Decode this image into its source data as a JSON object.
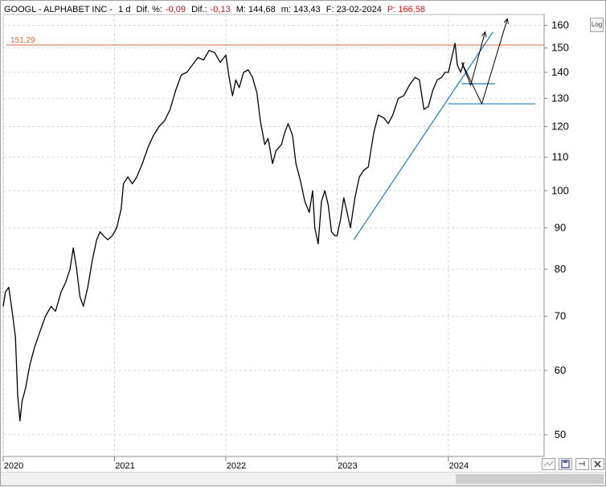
{
  "header": {
    "symbol": "GOOGL - ALPHABET INC -",
    "interval": "1 d",
    "pct_change_label": "Dif. %:",
    "pct_change_value": "-0,09",
    "change_label": "Dif.:",
    "change_value": "-0,13",
    "max_label": "M: 144,68",
    "min_label": "m: 143,43",
    "date_label": "F: 23-02-2024",
    "price_label": "P: 166,58"
  },
  "log_button": "Log",
  "colors": {
    "negative": "#d01010",
    "price_line": "#000000",
    "horizontal_level": "#d86a3a",
    "trendline": "#1c7ec0",
    "grid": "#d6d6d6"
  },
  "chart_data": {
    "type": "line",
    "series": [
      {
        "values": [
          [
            2020.0,
            72
          ],
          [
            2020.02,
            75
          ],
          [
            2020.05,
            76
          ],
          [
            2020.08,
            71
          ],
          [
            2020.11,
            66
          ],
          [
            2020.13,
            56
          ],
          [
            2020.15,
            52
          ],
          [
            2020.17,
            55
          ],
          [
            2020.2,
            57
          ],
          [
            2020.24,
            61
          ],
          [
            2020.28,
            64
          ],
          [
            2020.33,
            67
          ],
          [
            2020.38,
            70
          ],
          [
            2020.43,
            72
          ],
          [
            2020.47,
            71
          ],
          [
            2020.52,
            75
          ],
          [
            2020.56,
            77
          ],
          [
            2020.6,
            80
          ],
          [
            2020.63,
            85
          ],
          [
            2020.66,
            80
          ],
          [
            2020.69,
            74
          ],
          [
            2020.72,
            72
          ],
          [
            2020.76,
            76
          ],
          [
            2020.8,
            82
          ],
          [
            2020.84,
            87
          ],
          [
            2020.87,
            89
          ],
          [
            2020.9,
            88
          ],
          [
            2020.94,
            87
          ],
          [
            2020.98,
            88
          ],
          [
            2021.02,
            90
          ],
          [
            2021.06,
            95
          ],
          [
            2021.08,
            102
          ],
          [
            2021.12,
            104
          ],
          [
            2021.16,
            102
          ],
          [
            2021.2,
            104
          ],
          [
            2021.25,
            108
          ],
          [
            2021.3,
            113
          ],
          [
            2021.35,
            117
          ],
          [
            2021.4,
            120
          ],
          [
            2021.45,
            122
          ],
          [
            2021.5,
            126
          ],
          [
            2021.55,
            133
          ],
          [
            2021.6,
            139
          ],
          [
            2021.65,
            140
          ],
          [
            2021.7,
            143
          ],
          [
            2021.75,
            146
          ],
          [
            2021.8,
            145
          ],
          [
            2021.85,
            149
          ],
          [
            2021.9,
            148
          ],
          [
            2021.95,
            144
          ],
          [
            2022.0,
            147
          ],
          [
            2022.03,
            138
          ],
          [
            2022.06,
            131
          ],
          [
            2022.09,
            137
          ],
          [
            2022.12,
            134
          ],
          [
            2022.16,
            140
          ],
          [
            2022.2,
            141
          ],
          [
            2022.24,
            138
          ],
          [
            2022.28,
            132
          ],
          [
            2022.31,
            122
          ],
          [
            2022.35,
            114
          ],
          [
            2022.38,
            116
          ],
          [
            2022.42,
            108
          ],
          [
            2022.45,
            112
          ],
          [
            2022.5,
            114
          ],
          [
            2022.53,
            118
          ],
          [
            2022.56,
            121
          ],
          [
            2022.6,
            117
          ],
          [
            2022.63,
            108
          ],
          [
            2022.67,
            103
          ],
          [
            2022.71,
            97
          ],
          [
            2022.75,
            94
          ],
          [
            2022.78,
            100
          ],
          [
            2022.8,
            90
          ],
          [
            2022.83,
            86
          ],
          [
            2022.86,
            97
          ],
          [
            2022.89,
            100
          ],
          [
            2022.92,
            96
          ],
          [
            2022.95,
            89
          ],
          [
            2022.98,
            88
          ],
          [
            2023.0,
            88
          ],
          [
            2023.03,
            92
          ],
          [
            2023.06,
            98
          ],
          [
            2023.09,
            94
          ],
          [
            2023.12,
            90
          ],
          [
            2023.16,
            98
          ],
          [
            2023.2,
            104
          ],
          [
            2023.24,
            106
          ],
          [
            2023.28,
            107
          ],
          [
            2023.33,
            118
          ],
          [
            2023.37,
            124
          ],
          [
            2023.42,
            123
          ],
          [
            2023.46,
            121
          ],
          [
            2023.5,
            124
          ],
          [
            2023.55,
            130
          ],
          [
            2023.6,
            131
          ],
          [
            2023.65,
            135
          ],
          [
            2023.7,
            138
          ],
          [
            2023.74,
            137
          ],
          [
            2023.78,
            126
          ],
          [
            2023.82,
            127
          ],
          [
            2023.86,
            133
          ],
          [
            2023.9,
            137
          ],
          [
            2023.94,
            138
          ],
          [
            2023.97,
            140
          ],
          [
            2024.0,
            140
          ],
          [
            2024.03,
            146
          ],
          [
            2024.06,
            152
          ],
          [
            2024.08,
            143
          ],
          [
            2024.11,
            140
          ],
          [
            2024.14,
            144
          ]
        ]
      }
    ],
    "horizontal_level": {
      "value": 151.29,
      "label": "151,29"
    },
    "support_lines": [
      {
        "from": [
          2024.0,
          128
        ],
        "to": [
          2024.78,
          128
        ]
      },
      {
        "from": [
          2024.12,
          135.5
        ],
        "to": [
          2024.42,
          135.5
        ]
      }
    ],
    "trendline": {
      "from": [
        2023.15,
        87
      ],
      "to": [
        2024.4,
        157
      ]
    },
    "scenario_arrows": [
      [
        [
          2024.12,
          144
        ],
        [
          2024.2,
          135
        ],
        [
          2024.33,
          157
        ]
      ],
      [
        [
          2024.12,
          144
        ],
        [
          2024.3,
          128
        ],
        [
          2024.53,
          163
        ]
      ]
    ],
    "y_scale": "log",
    "ylim": [
      47,
      165
    ],
    "xlim": [
      2020.0,
      2024.86
    ],
    "y_ticks": [
      50,
      60,
      70,
      80,
      90,
      100,
      110,
      120,
      130,
      140,
      150,
      160
    ],
    "x_ticks": [
      {
        "value": 2020,
        "label": "2020"
      },
      {
        "value": 2021,
        "label": "2021"
      },
      {
        "value": 2022,
        "label": "2022"
      },
      {
        "value": 2023,
        "label": "2023"
      },
      {
        "value": 2024,
        "label": "2024"
      }
    ],
    "grid": true
  }
}
